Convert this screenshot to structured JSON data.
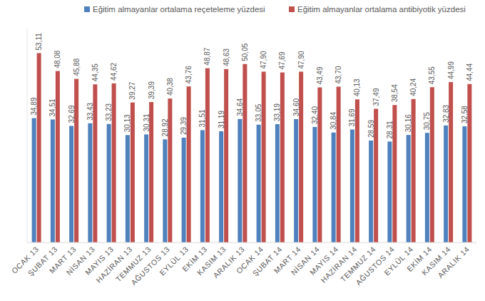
{
  "chart_data": {
    "type": "bar",
    "categories": [
      "OCAK 13",
      "ŞUBAT 13",
      "MART 13",
      "NİSAN 13",
      "MAYIS 13",
      "HAZİRAN 13",
      "TEMMUZ 13",
      "AĞUSTOS 13",
      "EYLÜL 13",
      "EKİM 13",
      "KASIM 13",
      "ARALIK 13",
      "OCAK 14",
      "ŞUBAT 14",
      "MART 14",
      "NİSAN 14",
      "MAYIS 14",
      "HAZİRAN 14",
      "TEMMUZ 14",
      "AĞUSTOS 14",
      "EYLÜL 14",
      "EKİM 14",
      "KASIM 14",
      "ARALIK 14"
    ],
    "series": [
      {
        "name": "Eğitim almayanlar ortalama reçeteleme yüzdesi",
        "color": "#4f81bd",
        "values": [
          34.89,
          34.51,
          32.69,
          33.43,
          33.23,
          30.13,
          30.31,
          28.92,
          29.39,
          31.51,
          31.19,
          34.64,
          33.05,
          33.19,
          34.6,
          32.4,
          30.84,
          31.69,
          28.59,
          28.31,
          30.16,
          30.75,
          32.83,
          32.58
        ],
        "value_labels": [
          "34,89",
          "34,51",
          "32,69",
          "33,43",
          "33,23",
          "30,13",
          "30,31",
          "28,92",
          "29,39",
          "31,51",
          "31,19",
          "34,64",
          "33,05",
          "33,19",
          "34,60",
          "32,40",
          "30,84",
          "31,69",
          "28,59",
          "28,31",
          "30,16",
          "30,75",
          "32,83",
          "32,58"
        ]
      },
      {
        "name": "Eğitim almayanlar ortalama antibiyotik yüzdesi",
        "color": "#c0504d",
        "values": [
          53.11,
          48.08,
          45.88,
          44.35,
          44.62,
          39.27,
          39.39,
          40.38,
          43.76,
          48.87,
          48.63,
          50.05,
          47.9,
          47.69,
          47.9,
          43.49,
          43.7,
          40.13,
          37.49,
          38.54,
          40.24,
          43.55,
          44.99,
          44.44
        ],
        "value_labels": [
          "53,11",
          "48,08",
          "45,88",
          "44,35",
          "44,62",
          "39,27",
          "39,39",
          "40,38",
          "43,76",
          "48,87",
          "48,63",
          "50,05",
          "47,90",
          "47,69",
          "47,90",
          "43,49",
          "43,70",
          "40,13",
          "37,49",
          "38,54",
          "40,24",
          "43,55",
          "44,99",
          "44,44"
        ]
      }
    ],
    "ylim": [
      0,
      60
    ],
    "grid": false,
    "legend": "top",
    "data_labels": true,
    "tick_labels": "x"
  }
}
